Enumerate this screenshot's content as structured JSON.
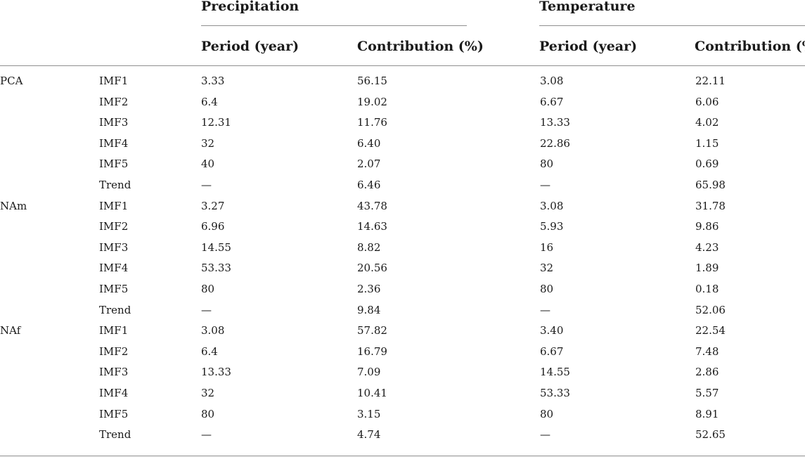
{
  "header": {
    "groups": [
      "Precipitation",
      "Temperature"
    ],
    "columns": [
      "Period (year)",
      "Contribution (%)",
      "Period (year)",
      "Contribution (%)"
    ]
  },
  "rows": [
    {
      "region": "PCA",
      "component": "IMF1",
      "p_period": "3.33",
      "p_contrib": "56.15",
      "t_period": "3.08",
      "t_contrib": "22.11"
    },
    {
      "region": "",
      "component": "IMF2",
      "p_period": "6.4",
      "p_contrib": "19.02",
      "t_period": "6.67",
      "t_contrib": "6.06"
    },
    {
      "region": "",
      "component": "IMF3",
      "p_period": "12.31",
      "p_contrib": "11.76",
      "t_period": "13.33",
      "t_contrib": "4.02"
    },
    {
      "region": "",
      "component": "IMF4",
      "p_period": "32",
      "p_contrib": "6.40",
      "t_period": "22.86",
      "t_contrib": "1.15"
    },
    {
      "region": "",
      "component": "IMF5",
      "p_period": "40",
      "p_contrib": "2.07",
      "t_period": "80",
      "t_contrib": "0.69"
    },
    {
      "region": "",
      "component": "Trend",
      "p_period": "—",
      "p_contrib": "6.46",
      "t_period": "—",
      "t_contrib": "65.98"
    },
    {
      "region": "NAm",
      "component": "IMF1",
      "p_period": "3.27",
      "p_contrib": "43.78",
      "t_period": "3.08",
      "t_contrib": "31.78"
    },
    {
      "region": "",
      "component": "IMF2",
      "p_period": "6.96",
      "p_contrib": "14.63",
      "t_period": "5.93",
      "t_contrib": "9.86"
    },
    {
      "region": "",
      "component": "IMF3",
      "p_period": "14.55",
      "p_contrib": "8.82",
      "t_period": "16",
      "t_contrib": "4.23"
    },
    {
      "region": "",
      "component": "IMF4",
      "p_period": "53.33",
      "p_contrib": "20.56",
      "t_period": "32",
      "t_contrib": "1.89"
    },
    {
      "region": "",
      "component": "IMF5",
      "p_period": "80",
      "p_contrib": "2.36",
      "t_period": "80",
      "t_contrib": "0.18"
    },
    {
      "region": "",
      "component": "Trend",
      "p_period": "—",
      "p_contrib": "9.84",
      "t_period": "—",
      "t_contrib": "52.06"
    },
    {
      "region": "NAf",
      "component": "IMF1",
      "p_period": "3.08",
      "p_contrib": "57.82",
      "t_period": "3.40",
      "t_contrib": "22.54"
    },
    {
      "region": "",
      "component": "IMF2",
      "p_period": "6.4",
      "p_contrib": "16.79",
      "t_period": "6.67",
      "t_contrib": "7.48"
    },
    {
      "region": "",
      "component": "IMF3",
      "p_period": "13.33",
      "p_contrib": "7.09",
      "t_period": "14.55",
      "t_contrib": "2.86"
    },
    {
      "region": "",
      "component": "IMF4",
      "p_period": "32",
      "p_contrib": "10.41",
      "t_period": "53.33",
      "t_contrib": "5.57"
    },
    {
      "region": "",
      "component": "IMF5",
      "p_period": "80",
      "p_contrib": "3.15",
      "t_period": "80",
      "t_contrib": "8.91"
    },
    {
      "region": "",
      "component": "Trend",
      "p_period": "—",
      "p_contrib": "4.74",
      "t_period": "—",
      "t_contrib": "52.65"
    }
  ]
}
